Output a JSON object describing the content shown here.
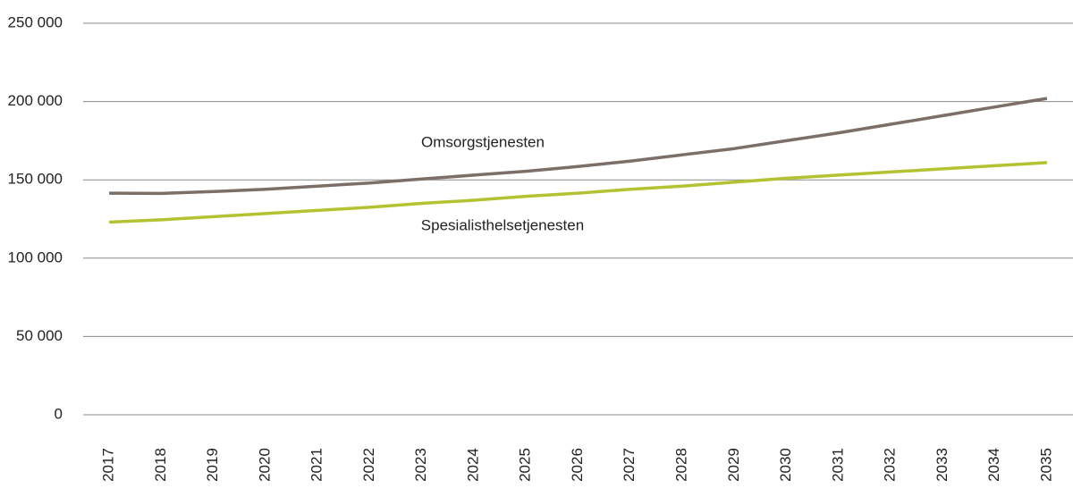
{
  "chart_data": {
    "type": "line",
    "categories": [
      "2017",
      "2018",
      "2019",
      "2020",
      "2021",
      "2022",
      "2023",
      "2024",
      "2025",
      "2026",
      "2027",
      "2028",
      "2029",
      "2030",
      "2031",
      "2032",
      "2033",
      "2034",
      "2035"
    ],
    "series": [
      {
        "name": "Omsorgstjenesten",
        "color": "#7b6f67",
        "values": [
          141500,
          141300,
          142500,
          144000,
          146000,
          148000,
          150500,
          153000,
          155500,
          158500,
          162000,
          166000,
          170000,
          175000,
          180000,
          185500,
          191000,
          196500,
          202000
        ]
      },
      {
        "name": "Spesialisthelsetjenesten",
        "color": "#b3c232",
        "values": [
          123000,
          124500,
          126500,
          128500,
          130500,
          132500,
          135000,
          137000,
          139500,
          141500,
          144000,
          146000,
          148500,
          151000,
          153000,
          155000,
          157000,
          159000,
          161000
        ]
      }
    ],
    "ylim": [
      0,
      250000
    ],
    "yticks": [
      0,
      {
        "value": 50000,
        "label": "50 000"
      },
      {
        "value": 100000,
        "label": "100 000"
      },
      {
        "value": 150000,
        "label": "150 000"
      },
      {
        "value": 200000,
        "label": "200 000"
      },
      {
        "value": 250000,
        "label": "250 000"
      }
    ],
    "grid": true
  }
}
